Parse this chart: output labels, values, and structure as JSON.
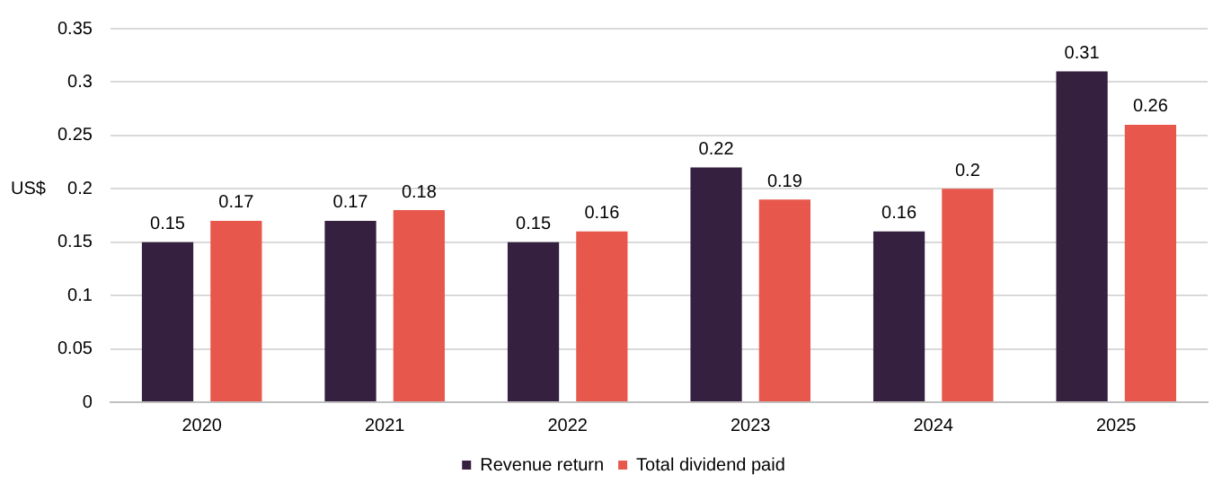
{
  "chart_data": {
    "type": "bar",
    "ylabel": "US$",
    "categories": [
      "2020",
      "2021",
      "2022",
      "2023",
      "2024",
      "2025"
    ],
    "series": [
      {
        "name": "Revenue return",
        "color": "#35203f",
        "values": [
          0.15,
          0.17,
          0.15,
          0.22,
          0.16,
          0.31
        ]
      },
      {
        "name": "Total dividend paid",
        "color": "#e8574b",
        "values": [
          0.17,
          0.18,
          0.16,
          0.19,
          0.2,
          0.26
        ]
      }
    ],
    "ylim": [
      0,
      0.35
    ],
    "yticks": [
      0,
      0.05,
      0.1,
      0.15,
      0.2,
      0.25,
      0.3,
      0.35
    ],
    "grid": "y",
    "legend": "bottom",
    "data_labels": true
  }
}
